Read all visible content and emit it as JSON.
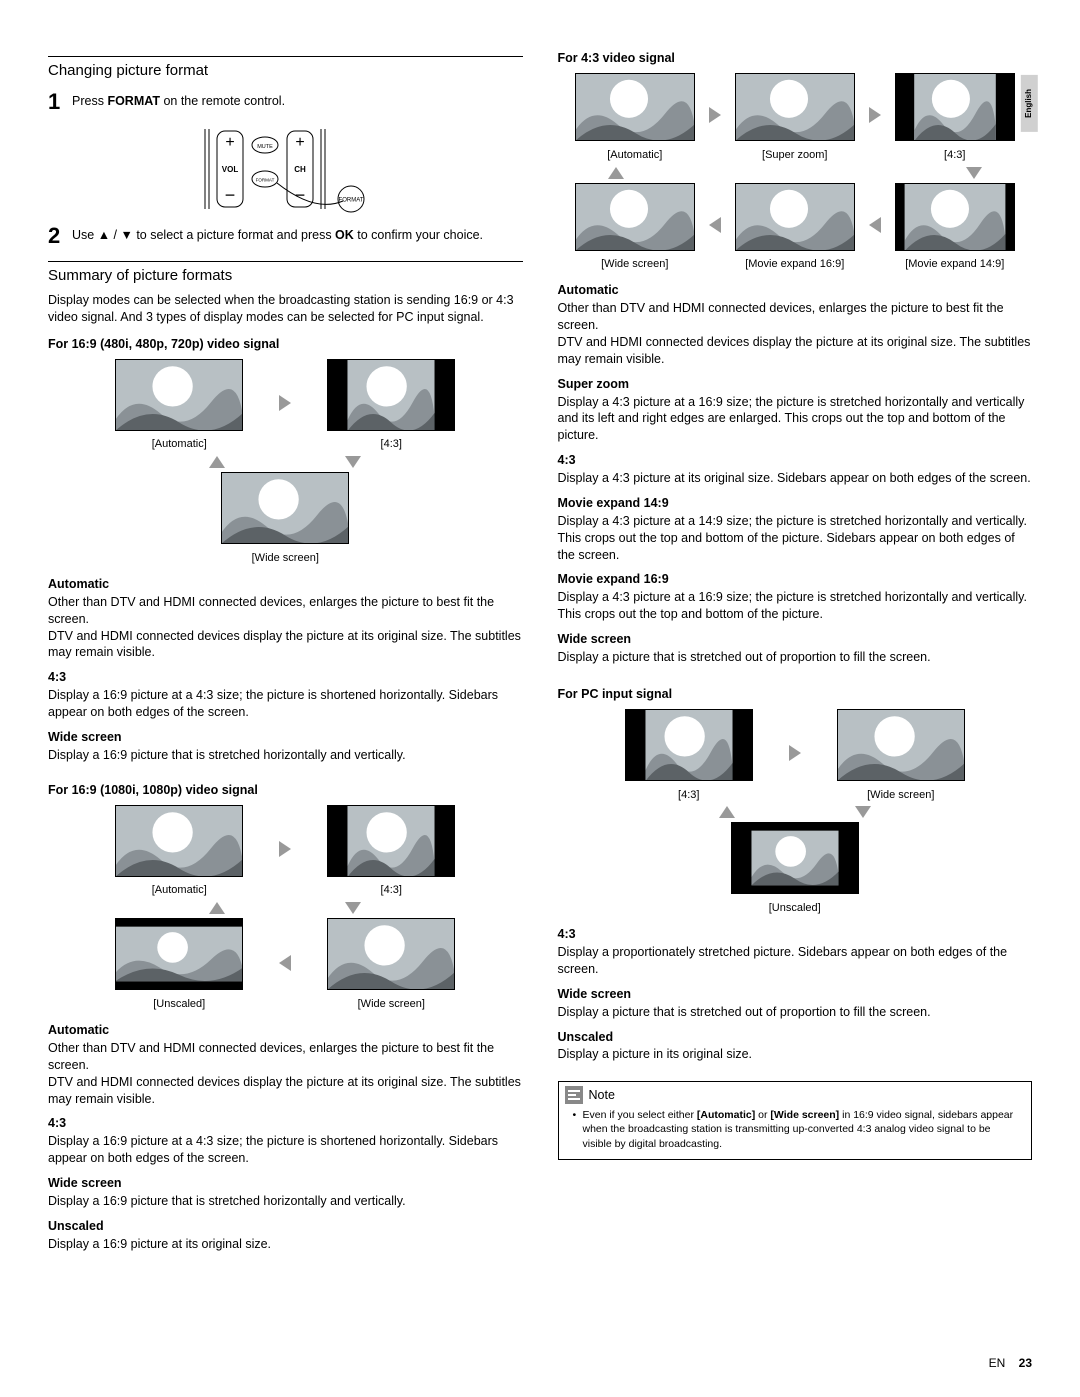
{
  "lang_tab": "English",
  "footer": {
    "lang": "EN",
    "page": "23"
  },
  "landscape_colors": {
    "sky": "#b8c0c4",
    "sun": "#ffffff",
    "mountain_back": "#8a9196",
    "mountain_front": "#5c6266",
    "frame": "#000000"
  },
  "left": {
    "h1": "Changing picture format",
    "step1_num": "1",
    "step1_a": "Press ",
    "step1_b": "FORMAT",
    "step1_c": " on the remote control.",
    "remote": {
      "vol": "VOL",
      "ch": "CH",
      "mute": "MUTE",
      "format_small": "FORMAT",
      "callout": "FORMAT"
    },
    "step2_num": "2",
    "step2_a": "Use ▲ / ▼ to select a picture format and press ",
    "step2_b": "OK",
    "step2_c": " to confirm your choice.",
    "h2": "Summary of picture formats",
    "intro": "Display modes can be selected when the broadcasting station is sending 16:9 or 4:3 video signal. And 3 types of display modes can be selected for PC input signal.",
    "sig1_title": "For 16:9 (480i, 480p, 720p) video signal",
    "sig1_caps": {
      "auto": "[Automatic]",
      "r43": "[4:3]",
      "wide": "[Wide screen]"
    },
    "sig1_desc": [
      {
        "t": "Automatic",
        "d": "Other than DTV and HDMI connected devices, enlarges the picture to best fit the screen.\nDTV and HDMI connected devices display the picture at its original size. The subtitles may remain visible."
      },
      {
        "t": "4:3",
        "d": "Display a 16:9 picture at a 4:3 size; the picture is shortened horizontally. Sidebars appear on both edges of the screen."
      },
      {
        "t": "Wide screen",
        "d": "Display a 16:9 picture that is stretched horizontally and vertically."
      }
    ],
    "sig2_title": "For 16:9 (1080i, 1080p) video signal",
    "sig2_caps": {
      "auto": "[Automatic]",
      "r43": "[4:3]",
      "wide": "[Wide screen]",
      "unscaled": "[Unscaled]"
    },
    "sig2_desc": [
      {
        "t": "Automatic",
        "d": "Other than DTV and HDMI connected devices, enlarges the picture to best fit the screen.\nDTV and HDMI connected devices display the picture at its original size. The subtitles may remain visible."
      },
      {
        "t": "4:3",
        "d": "Display a 16:9 picture at a 4:3 size; the picture is shortened horizontally. Sidebars appear on both edges of the screen."
      },
      {
        "t": "Wide screen",
        "d": "Display a 16:9 picture that is stretched horizontally and vertically."
      },
      {
        "t": "Unscaled",
        "d": "Display a 16:9 picture at its original size."
      }
    ]
  },
  "right": {
    "sig3_title": "For 4:3 video signal",
    "sig3_caps": {
      "auto": "[Automatic]",
      "sz": "[Super zoom]",
      "r43": "[4:3]",
      "wide": "[Wide screen]",
      "me169": "[Movie expand 16:9]",
      "me149": "[Movie expand 14:9]"
    },
    "sig3_desc": [
      {
        "t": "Automatic",
        "d": "Other than DTV and HDMI connected devices, enlarges the picture to best fit the screen.\nDTV and HDMI connected devices display the picture at its original size. The subtitles may remain visible."
      },
      {
        "t": "Super zoom",
        "d": "Display a 4:3 picture at a 16:9 size; the picture is stretched horizontally and vertically and its left and right edges are enlarged. This crops out the top and bottom of the picture."
      },
      {
        "t": "4:3",
        "d": "Display a 4:3 picture at its original size. Sidebars appear on both edges of the screen."
      },
      {
        "t": "Movie expand 14:9",
        "d": "Display a 4:3 picture at a 14:9 size; the picture is stretched horizontally and vertically. This crops out the top and bottom of the picture. Sidebars appear on both edges of the screen."
      },
      {
        "t": "Movie expand 16:9",
        "d": "Display a 4:3 picture at a 16:9 size; the picture is stretched horizontally and vertically. This crops out the top and bottom of the picture."
      },
      {
        "t": "Wide screen",
        "d": "Display a picture that is stretched out of proportion to fill the screen."
      }
    ],
    "sig4_title": "For PC input signal",
    "sig4_caps": {
      "r43": "[4:3]",
      "wide": "[Wide screen]",
      "unscaled": "[Unscaled]"
    },
    "sig4_desc": [
      {
        "t": "4:3",
        "d": "Display a proportionately stretched picture. Sidebars appear on both edges of the screen."
      },
      {
        "t": "Wide screen",
        "d": "Display a picture that is stretched out of proportion to fill the screen."
      },
      {
        "t": "Unscaled",
        "d": "Display a picture in its original size."
      }
    ],
    "note_label": "Note",
    "note_a": "Even if you select either ",
    "note_b": "[Automatic]",
    "note_c": " or ",
    "note_d": "[Wide screen]",
    "note_e": " in 16:9 video signal, sidebars appear when the broadcasting station is transmitting up-converted 4:3 analog video signal to be visible by digital broadcasting."
  }
}
